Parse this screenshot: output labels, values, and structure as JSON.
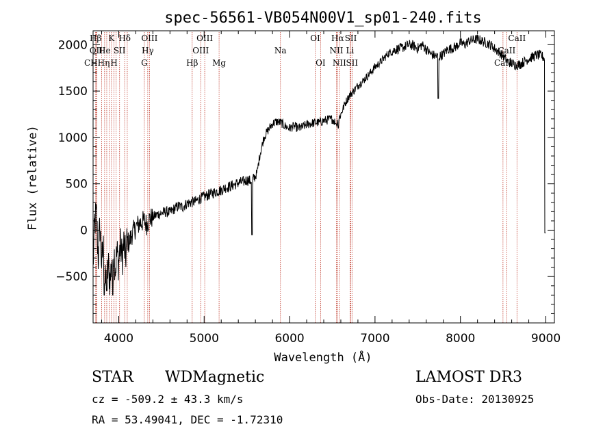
{
  "chart_data": {
    "type": "line",
    "title": "spec-56561-VB054N00V1_sp01-240.fits",
    "xlabel": "Wavelength (Å)",
    "ylabel": "Flux (relative)",
    "xlim": [
      3700,
      9100
    ],
    "ylim": [
      -1000,
      2150
    ],
    "xticks": [
      4000,
      5000,
      6000,
      7000,
      8000,
      9000
    ],
    "yticks": [
      -500,
      0,
      500,
      1000,
      1500,
      2000
    ],
    "grid": false,
    "series": [
      {
        "name": "flux",
        "color": "#000000",
        "anchors": [
          [
            3700,
            -380
          ],
          [
            3720,
            100
          ],
          [
            3740,
            150
          ],
          [
            3760,
            -300
          ],
          [
            3780,
            50
          ],
          [
            3800,
            -350
          ],
          [
            3820,
            -200
          ],
          [
            3840,
            -600
          ],
          [
            3860,
            -500
          ],
          [
            3880,
            -400
          ],
          [
            3900,
            -550
          ],
          [
            3920,
            -300
          ],
          [
            3940,
            -200
          ],
          [
            3960,
            -400
          ],
          [
            3980,
            -250
          ],
          [
            4000,
            -350
          ],
          [
            4020,
            -150
          ],
          [
            4040,
            -300
          ],
          [
            4060,
            -150
          ],
          [
            4080,
            -300
          ],
          [
            4100,
            -100
          ],
          [
            4120,
            -150
          ],
          [
            4150,
            -50
          ],
          [
            4200,
            30
          ],
          [
            4250,
            80
          ],
          [
            4300,
            100
          ],
          [
            4330,
            60
          ],
          [
            4360,
            120
          ],
          [
            4400,
            140
          ],
          [
            4450,
            170
          ],
          [
            4500,
            180
          ],
          [
            4550,
            200
          ],
          [
            4600,
            190
          ],
          [
            4650,
            230
          ],
          [
            4700,
            260
          ],
          [
            4750,
            250
          ],
          [
            4800,
            290
          ],
          [
            4850,
            300
          ],
          [
            4900,
            310
          ],
          [
            4950,
            340
          ],
          [
            5000,
            360
          ],
          [
            5050,
            380
          ],
          [
            5100,
            400
          ],
          [
            5150,
            420
          ],
          [
            5200,
            430
          ],
          [
            5250,
            460
          ],
          [
            5300,
            470
          ],
          [
            5350,
            490
          ],
          [
            5400,
            510
          ],
          [
            5450,
            520
          ],
          [
            5500,
            540
          ],
          [
            5550,
            530
          ],
          [
            5600,
            580
          ],
          [
            5620,
            620
          ],
          [
            5650,
            800
          ],
          [
            5700,
            1000
          ],
          [
            5750,
            1080
          ],
          [
            5800,
            1150
          ],
          [
            5850,
            1170
          ],
          [
            5900,
            1160
          ],
          [
            5950,
            1120
          ],
          [
            6000,
            1100
          ],
          [
            6050,
            1120
          ],
          [
            6100,
            1100
          ],
          [
            6150,
            1110
          ],
          [
            6200,
            1140
          ],
          [
            6250,
            1150
          ],
          [
            6300,
            1160
          ],
          [
            6350,
            1160
          ],
          [
            6400,
            1180
          ],
          [
            6450,
            1190
          ],
          [
            6500,
            1200
          ],
          [
            6550,
            1150
          ],
          [
            6600,
            1250
          ],
          [
            6650,
            1370
          ],
          [
            6700,
            1450
          ],
          [
            6750,
            1500
          ],
          [
            6800,
            1560
          ],
          [
            6850,
            1600
          ],
          [
            6900,
            1650
          ],
          [
            6950,
            1700
          ],
          [
            7000,
            1760
          ],
          [
            7050,
            1800
          ],
          [
            7100,
            1850
          ],
          [
            7150,
            1900
          ],
          [
            7200,
            1930
          ],
          [
            7250,
            1950
          ],
          [
            7300,
            1960
          ],
          [
            7350,
            1980
          ],
          [
            7400,
            2000
          ],
          [
            7450,
            1990
          ],
          [
            7500,
            1960
          ],
          [
            7550,
            2000
          ],
          [
            7600,
            1950
          ],
          [
            7650,
            1900
          ],
          [
            7700,
            1880
          ],
          [
            7750,
            1870
          ],
          [
            7800,
            1900
          ],
          [
            7850,
            1950
          ],
          [
            7900,
            1960
          ],
          [
            7950,
            1980
          ],
          [
            8000,
            2020
          ],
          [
            8050,
            2000
          ],
          [
            8100,
            2040
          ],
          [
            8150,
            2050
          ],
          [
            8200,
            2060
          ],
          [
            8250,
            2040
          ],
          [
            8300,
            2020
          ],
          [
            8350,
            2000
          ],
          [
            8400,
            1960
          ],
          [
            8450,
            1920
          ],
          [
            8500,
            1880
          ],
          [
            8550,
            1820
          ],
          [
            8600,
            1800
          ],
          [
            8650,
            1780
          ],
          [
            8700,
            1790
          ],
          [
            8750,
            1820
          ],
          [
            8800,
            1850
          ],
          [
            8850,
            1870
          ],
          [
            8900,
            1890
          ],
          [
            8950,
            1880
          ],
          [
            8990,
            1850
          ]
        ],
        "features": [
          {
            "x": 5560,
            "y": -50
          },
          {
            "x": 7740,
            "y": 1420
          },
          {
            "x": 6540,
            "y": 1150
          },
          {
            "x": 6570,
            "y": 1100
          },
          {
            "x": 3830,
            "y": -700
          },
          {
            "x": 3860,
            "y": -650
          },
          {
            "x": 3930,
            "y": -700
          },
          {
            "x": 8990,
            "y": -30
          },
          {
            "x": 9000,
            "y": 500
          }
        ]
      }
    ],
    "line_markers": [
      {
        "x": 3730,
        "label": "Hβ",
        "row": 1
      },
      {
        "x": 3735,
        "label": "OII",
        "row": 2
      },
      {
        "x": 3745,
        "label": "CHHη",
        "row": 3
      },
      {
        "x": 3800,
        "label": "",
        "row": 0
      },
      {
        "x": 3835,
        "label": "He",
        "row": 2
      },
      {
        "x": 3860,
        "label": "",
        "row": 0
      },
      {
        "x": 3890,
        "label": "",
        "row": 0
      },
      {
        "x": 3915,
        "label": "K",
        "row": 1
      },
      {
        "x": 3945,
        "label": "H",
        "row": 3
      },
      {
        "x": 3970,
        "label": "",
        "row": 0
      },
      {
        "x": 4010,
        "label": "SII",
        "row": 2
      },
      {
        "x": 4070,
        "label": "Hδ",
        "row": 1
      },
      {
        "x": 4100,
        "label": "",
        "row": 0
      },
      {
        "x": 4300,
        "label": "G",
        "row": 3
      },
      {
        "x": 4340,
        "label": "Hγ",
        "row": 2
      },
      {
        "x": 4360,
        "label": "OIII",
        "row": 1
      },
      {
        "x": 4860,
        "label": "Hβ",
        "row": 3
      },
      {
        "x": 4960,
        "label": "OIII",
        "row": 2
      },
      {
        "x": 5007,
        "label": "OIII",
        "row": 1
      },
      {
        "x": 5175,
        "label": "Mg",
        "row": 3
      },
      {
        "x": 5893,
        "label": "Na",
        "row": 2
      },
      {
        "x": 6300,
        "label": "OI",
        "row": 1
      },
      {
        "x": 6363,
        "label": "OI",
        "row": 3
      },
      {
        "x": 6548,
        "label": "NII",
        "row": 2
      },
      {
        "x": 6563,
        "label": "Hα",
        "row": 1
      },
      {
        "x": 6583,
        "label": "NII",
        "row": 3
      },
      {
        "x": 6708,
        "label": "Li",
        "row": 2
      },
      {
        "x": 6717,
        "label": "SII",
        "row": 1
      },
      {
        "x": 6731,
        "label": "SII",
        "row": 3
      },
      {
        "x": 8498,
        "label": "CaII",
        "row": 3
      },
      {
        "x": 8542,
        "label": "CaII",
        "row": 2
      },
      {
        "x": 8662,
        "label": "CaII",
        "row": 1
      }
    ]
  },
  "info": {
    "object_class": "STAR",
    "subclass": "WDMagnetic",
    "survey": "LAMOST DR3",
    "cz": "cz = -509.2 ± 43.3 km/s",
    "obs_date": "Obs-Date: 20130925",
    "coords": "RA =  53.49041, DEC =  -1.72310"
  },
  "colors": {
    "marker": "#c0392b",
    "axis": "#000000",
    "line": "#000000"
  }
}
